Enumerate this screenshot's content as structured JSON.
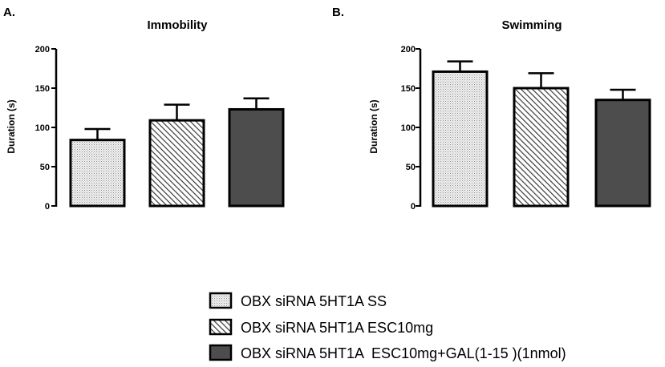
{
  "chart_data": [
    {
      "type": "bar",
      "panel": "A.",
      "title": "Immobility",
      "ylabel": "Duration (s)",
      "xlabel": "",
      "ylim": [
        0,
        200
      ],
      "yticks": [
        "0",
        "50",
        "100",
        "150",
        "200"
      ],
      "categories": [
        "OBX siRNA 5HT1A SS",
        "OBX siRNA 5HT1A ESC10mg",
        "OBX siRNA 5HT1A  ESC10mg+GAL(1-15 )(1nmol)"
      ],
      "values": [
        84,
        109,
        123
      ],
      "errors": [
        14,
        20,
        14
      ]
    },
    {
      "type": "bar",
      "panel": "B.",
      "title": "Swimming",
      "ylabel": "Duration (s)",
      "xlabel": "",
      "ylim": [
        0,
        200
      ],
      "yticks": [
        "0",
        "50",
        "100",
        "150",
        "200"
      ],
      "categories": [
        "OBX siRNA 5HT1A SS",
        "OBX siRNA 5HT1A ESC10mg",
        "OBX siRNA 5HT1A  ESC10mg+GAL(1-15 )(1nmol)"
      ],
      "values": [
        171,
        150,
        135
      ],
      "errors": [
        13,
        19,
        13
      ]
    }
  ],
  "legend": {
    "placement": "bottom-center",
    "items": [
      {
        "label": "OBX siRNA 5HT1A SS",
        "pattern": "dots"
      },
      {
        "label": "OBX siRNA 5HT1A ESC10mg",
        "pattern": "hatch"
      },
      {
        "label": "OBX siRNA 5HT1A  ESC10mg+GAL(1-15 )(1nmol)",
        "pattern": "solid"
      }
    ]
  },
  "colors": {
    "dots_fill": "#f2f2f2",
    "dots": "#8a8a8a",
    "hatch": "#3a3a3a",
    "solid": "#4d4d4d",
    "axis": "#000000"
  }
}
